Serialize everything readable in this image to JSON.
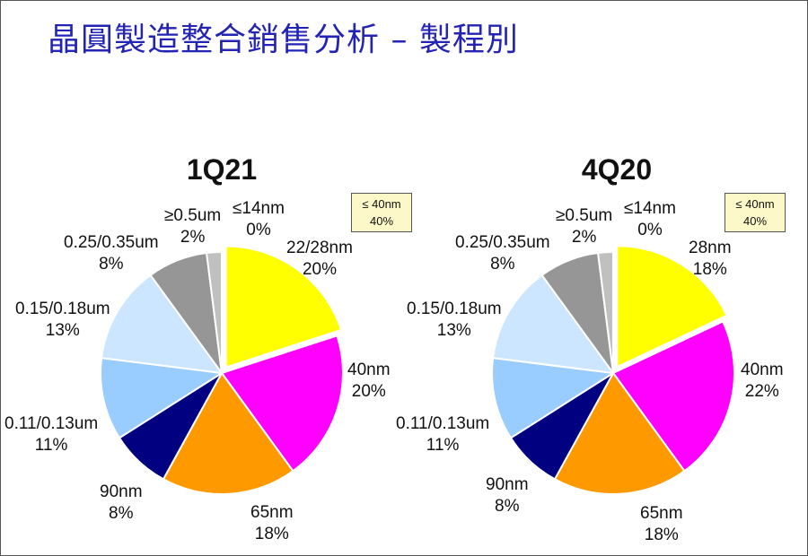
{
  "title": "晶圓製造整合銷售分析 – 製程別",
  "colors": {
    "title": "#2323b4",
    "yellow": "#ffff00",
    "magenta": "#ff00ff",
    "orange": "#ff9900",
    "navy": "#000080",
    "light_blue": "#99ccff",
    "pale_blue": "#cce6ff",
    "gray": "#969696",
    "light_gray": "#c0c0c0",
    "note_box": "#fdf8c8"
  },
  "chart_data": [
    {
      "type": "pie",
      "title": "1Q21",
      "slices": [
        {
          "label": "22/28nm",
          "value": 20,
          "pct_text": "20%",
          "color": "#ffff00",
          "exploded": true
        },
        {
          "label": "40nm",
          "value": 20,
          "pct_text": "20%",
          "color": "#ff00ff"
        },
        {
          "label": "65nm",
          "value": 18,
          "pct_text": "18%",
          "color": "#ff9900"
        },
        {
          "label": "90nm",
          "value": 8,
          "pct_text": "8%",
          "color": "#000080"
        },
        {
          "label": "0.11/0.13um",
          "value": 11,
          "pct_text": "11%",
          "color": "#99ccff"
        },
        {
          "label": "0.15/0.18um",
          "value": 13,
          "pct_text": "13%",
          "color": "#cce6ff"
        },
        {
          "label": "0.25/0.35um",
          "value": 8,
          "pct_text": "8%",
          "color": "#969696"
        },
        {
          "label": "≥0.5um",
          "value": 2,
          "pct_text": "2%",
          "color": "#c0c0c0"
        },
        {
          "label": "≤14nm",
          "value": 0,
          "pct_text": "0%",
          "color": "#ffffff"
        }
      ],
      "note": {
        "label": "≤ 40nm",
        "value": "40%"
      }
    },
    {
      "type": "pie",
      "title": "4Q20",
      "slices": [
        {
          "label": "28nm",
          "value": 18,
          "pct_text": "18%",
          "color": "#ffff00",
          "exploded": true
        },
        {
          "label": "40nm",
          "value": 22,
          "pct_text": "22%",
          "color": "#ff00ff"
        },
        {
          "label": "65nm",
          "value": 18,
          "pct_text": "18%",
          "color": "#ff9900"
        },
        {
          "label": "90nm",
          "value": 8,
          "pct_text": "8%",
          "color": "#000080"
        },
        {
          "label": "0.11/0.13um",
          "value": 11,
          "pct_text": "11%",
          "color": "#99ccff"
        },
        {
          "label": "0.15/0.18um",
          "value": 13,
          "pct_text": "13%",
          "color": "#cce6ff"
        },
        {
          "label": "0.25/0.35um",
          "value": 8,
          "pct_text": "8%",
          "color": "#969696"
        },
        {
          "label": "≥0.5um",
          "value": 2,
          "pct_text": "2%",
          "color": "#c0c0c0"
        },
        {
          "label": "≤14nm",
          "value": 0,
          "pct_text": "0%",
          "color": "#ffffff"
        }
      ],
      "note": {
        "label": "≤ 40nm",
        "value": "40%"
      }
    }
  ]
}
